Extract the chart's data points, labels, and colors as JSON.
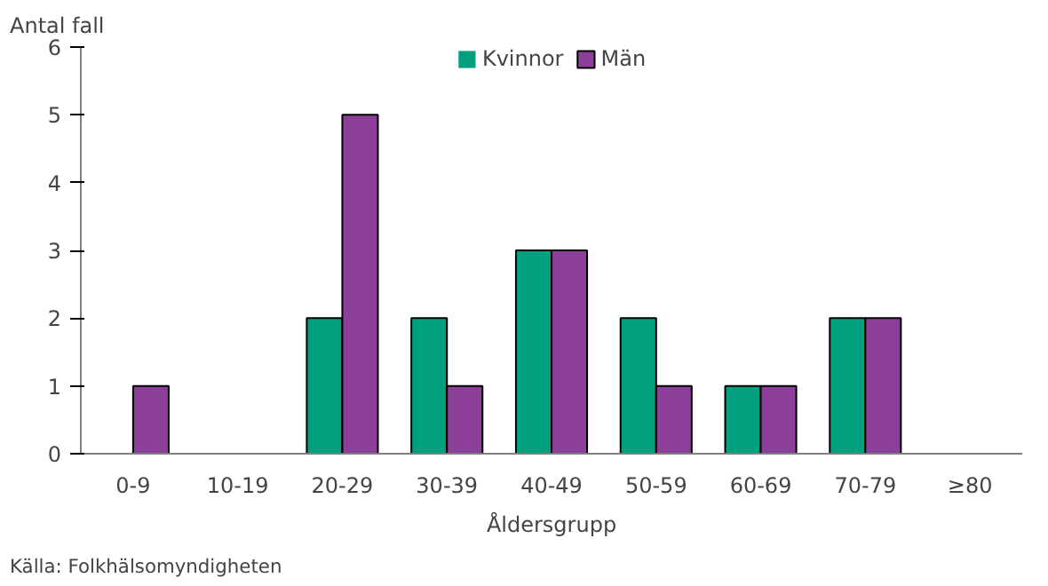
{
  "chart_data": {
    "type": "bar",
    "ylabel": "Antal fall",
    "xlabel": "Åldersgrupp",
    "categories": [
      "0-9",
      "10-19",
      "20-29",
      "30-39",
      "40-49",
      "50-59",
      "60-69",
      "70-79",
      "≥80"
    ],
    "series": [
      {
        "name": "Kvinnor",
        "color": "#00a07f",
        "values": [
          0,
          0,
          2,
          2,
          3,
          2,
          1,
          2,
          0
        ]
      },
      {
        "name": "Män",
        "color": "#8c3f98",
        "values": [
          1,
          0,
          5,
          1,
          3,
          1,
          1,
          2,
          0
        ]
      }
    ],
    "ylim": [
      0,
      6
    ],
    "yticks": [
      0,
      1,
      2,
      3,
      4,
      5,
      6
    ],
    "grid": false,
    "legend": "top",
    "annotations": [
      "Källa: Folkhälsomyndigheten"
    ]
  }
}
